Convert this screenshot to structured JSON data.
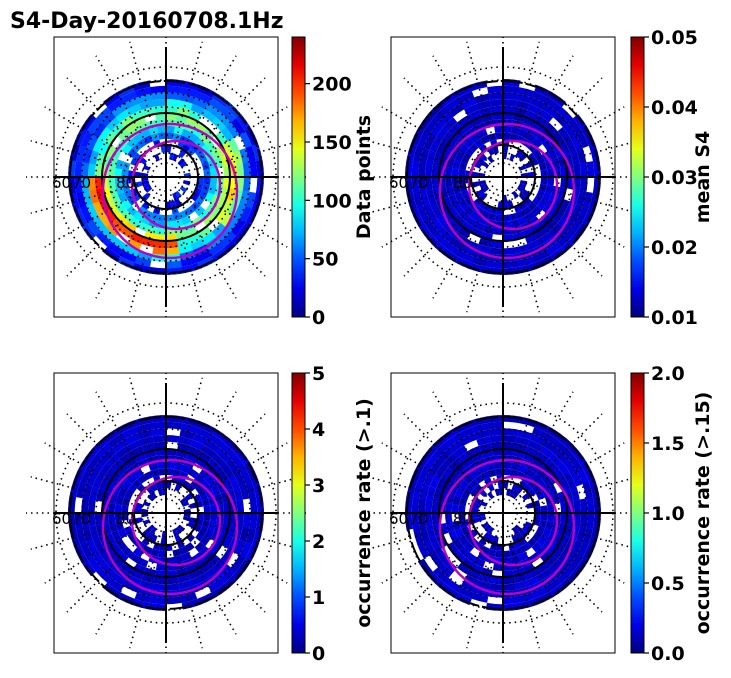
{
  "title": "S4-Day-20160708.1Hz",
  "chart_data": [
    {
      "type": "heatmap",
      "projection": "polar",
      "ring_labels": [
        "60",
        "70",
        "80"
      ],
      "colorbar": {
        "label": "Data points",
        "range": [
          0,
          240
        ],
        "ticks": [
          0,
          50,
          100,
          150,
          200
        ]
      },
      "mode": "counts"
    },
    {
      "type": "heatmap",
      "projection": "polar",
      "ring_labels": [
        "60",
        "70",
        "80"
      ],
      "colorbar": {
        "label": "mean S4",
        "range": [
          0.01,
          0.05
        ],
        "ticks": [
          "0.01",
          "0.02",
          "0.03",
          "0.04",
          "0.05"
        ]
      },
      "mode": "low"
    },
    {
      "type": "heatmap",
      "projection": "polar",
      "ring_labels": [
        "60",
        "70",
        "80"
      ],
      "colorbar": {
        "label": "occurrence rate (>.1)",
        "range": [
          0,
          5
        ],
        "ticks": [
          0,
          1,
          2,
          3,
          4,
          5
        ]
      },
      "mode": "low"
    },
    {
      "type": "heatmap",
      "projection": "polar",
      "ring_labels": [
        "60",
        "70",
        "80"
      ],
      "colorbar": {
        "label": "occurrence rate (>.15)",
        "range": [
          0,
          2
        ],
        "ticks": [
          "0.0",
          "0.5",
          "1.0",
          "1.5",
          "2.0"
        ]
      },
      "mode": "low"
    }
  ]
}
